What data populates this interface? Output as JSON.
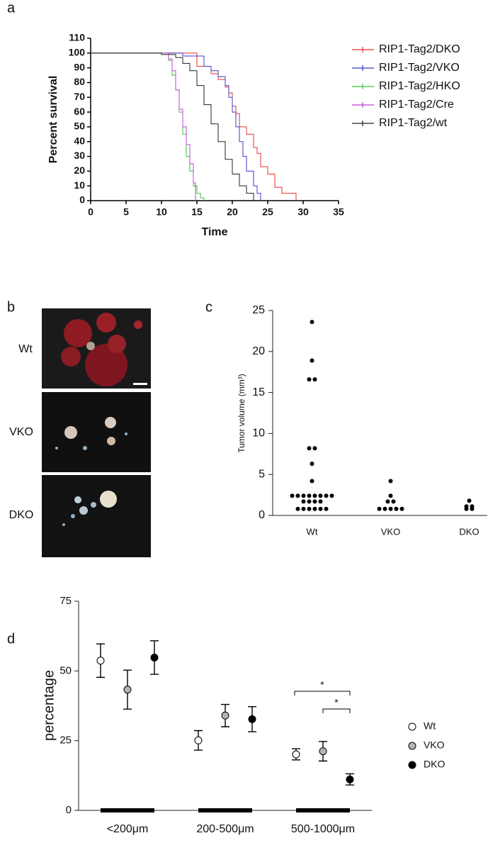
{
  "panel_labels": [
    "a",
    "b",
    "c",
    "d"
  ],
  "image_panel": {
    "labels": [
      "Wt",
      "VKO",
      "DKO"
    ]
  },
  "chart_data": [
    {
      "type": "step",
      "xlabel": "Time",
      "ylabel": "Percent survival",
      "xlim": [
        0,
        35
      ],
      "xticks": [
        0,
        5,
        10,
        15,
        20,
        25,
        30,
        35
      ],
      "ylim": [
        0,
        110
      ],
      "yticks": [
        0,
        10,
        20,
        30,
        40,
        50,
        60,
        70,
        80,
        90,
        100,
        110
      ],
      "series": [
        {
          "name": "RIP1-Tag2/DKO",
          "color": "#e8322e",
          "x": [
            0,
            15,
            17,
            18,
            19,
            19.5,
            20,
            20.5,
            21,
            22,
            23,
            23.5,
            24,
            25,
            26,
            27,
            29
          ],
          "values": [
            100,
            91,
            86,
            82,
            77,
            73,
            64,
            59,
            50,
            45,
            36,
            32,
            23,
            18,
            9,
            5,
            0
          ]
        },
        {
          "name": "RIP1-Tag2/VKO",
          "color": "#3a3ec8",
          "x": [
            0,
            13,
            16,
            17,
            18,
            19,
            19.5,
            20,
            20.5,
            21,
            21.5,
            22,
            23,
            23.5,
            24
          ],
          "values": [
            100,
            98,
            91,
            88,
            84,
            78,
            70,
            60,
            50,
            40,
            30,
            20,
            10,
            5,
            0
          ]
        },
        {
          "name": "RIP1-Tag2/HKO",
          "color": "#3cc03c",
          "x": [
            0,
            11,
            11.5,
            12,
            12.5,
            13,
            13.5,
            14,
            14.5,
            15,
            15.5,
            16
          ],
          "values": [
            100,
            95,
            85,
            75,
            60,
            45,
            30,
            20,
            10,
            5,
            2,
            0
          ]
        },
        {
          "name": "RIP1-Tag2/Cre",
          "color": "#c040d8",
          "x": [
            0,
            11,
            11.5,
            12,
            12.5,
            13,
            13.5,
            14,
            14.5,
            14.8
          ],
          "values": [
            100,
            96,
            88,
            75,
            62,
            50,
            38,
            25,
            12,
            0
          ]
        },
        {
          "name": "RIP1-Tag2/wt",
          "color": "#222222",
          "x": [
            0,
            10,
            12,
            13,
            14,
            15,
            16,
            17,
            18,
            19,
            20,
            21,
            22,
            23
          ],
          "values": [
            100,
            99,
            97,
            93,
            88,
            78,
            65,
            52,
            40,
            28,
            18,
            10,
            5,
            0
          ]
        }
      ]
    },
    {
      "type": "strip",
      "ylabel": "Tumor volume (mm³)",
      "categories": [
        "Wt",
        "VKO",
        "DKO"
      ],
      "values": [
        [
          23.6,
          18.9,
          16.6,
          16.6,
          8.2,
          8.2,
          6.3,
          4.2,
          2.4,
          2.4,
          2.4,
          2.4,
          2.4,
          2.4,
          2.4,
          2.4,
          1.7,
          1.7,
          1.7,
          1.7,
          0.8,
          0.8,
          0.8,
          0.8,
          0.8,
          0.8
        ],
        [
          4.2,
          2.4,
          1.7,
          1.7,
          0.8,
          0.8,
          0.8,
          0.8,
          0.8
        ],
        [
          1.8,
          1.1,
          1.1,
          0.8,
          0.8
        ]
      ],
      "color": "#000000",
      "ylim": [
        0,
        25
      ],
      "yticks": [
        0,
        5,
        10,
        15,
        20,
        25
      ]
    },
    {
      "type": "dot-error",
      "ylabel": "percentage",
      "categories": [
        "<200μm",
        "200-500μm",
        "500-1000μm"
      ],
      "series": [
        {
          "name": "Wt",
          "color": "#ffffff",
          "values": [
            53.7,
            25.1,
            20.1
          ],
          "errors": [
            6,
            3.5,
            2
          ]
        },
        {
          "name": "VKO",
          "color": "#b4b4b4",
          "values": [
            43.3,
            34,
            21.2
          ],
          "errors": [
            7,
            4,
            3.5
          ]
        },
        {
          "name": "DKO",
          "color": "#000000",
          "values": [
            54.8,
            32.7,
            11.1
          ],
          "errors": [
            6,
            4.5,
            2
          ]
        }
      ],
      "ylim": [
        0,
        75
      ],
      "yticks": [
        0,
        25,
        50,
        75
      ],
      "annotations": [
        "*",
        "*"
      ]
    }
  ]
}
